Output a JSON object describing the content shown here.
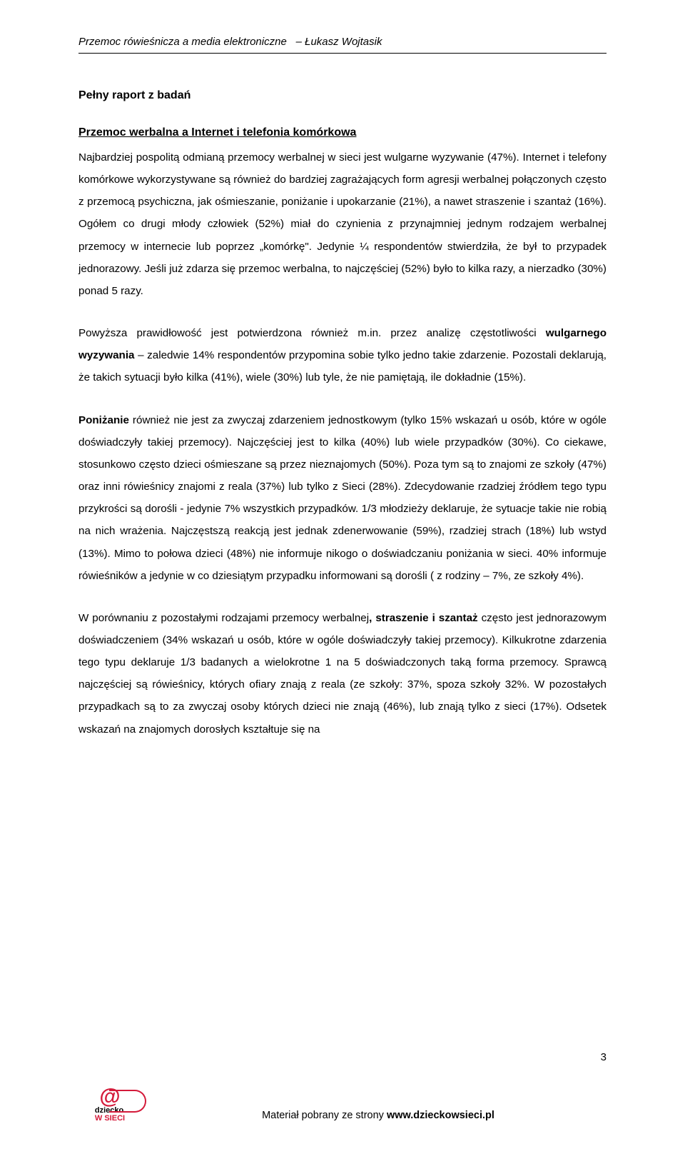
{
  "header": {
    "left": "Przemoc rówieśnicza a media elektroniczne",
    "right": "– Łukasz Wojtasik"
  },
  "title": "Pełny raport z badań",
  "subtitle": "Przemoc werbalna a Internet i telefonia komórkowa",
  "paragraphs": {
    "p1": "Najbardziej pospolitą odmianą przemocy werbalnej w sieci jest wulgarne wyzywanie (47%). Internet i telefony komórkowe wykorzystywane są również do bardziej zagrażających form agresji werbalnej połączonych często z przemocą psychiczna, jak ośmieszanie, poniżanie i upokarzanie (21%), a nawet straszenie i szantaż (16%). Ogółem co drugi młody człowiek (52%) miał do czynienia z przynajmniej jednym rodzajem werbalnej przemocy w internecie lub poprzez „komórkę\". Jedynie ¼ respondentów stwierdziła, że był to przypadek jednorazowy. Jeśli już zdarza się przemoc werbalna, to najczęściej (52%) było to kilka razy, a nierzadko (30%) ponad 5 razy.",
    "p2_a": "Powyższa prawidłowość jest potwierdzona również m.in. przez analizę częstotliwości ",
    "p2_b": "wulgarnego wyzywania",
    "p2_c": " – zaledwie 14% respondentów przypomina sobie tylko jedno takie zdarzenie. Pozostali deklarują, że takich sytuacji było kilka (41%), wiele (30%) lub tyle, że nie pamiętają, ile dokładnie (15%).",
    "p3_a": "Poniżanie",
    "p3_b": " również nie jest za zwyczaj zdarzeniem jednostkowym (tylko 15% wskazań u osób, które w ogóle doświadczyły takiej przemocy). Najczęściej jest to kilka (40%) lub wiele przypadków (30%). Co ciekawe, stosunkowo często dzieci ośmieszane są przez nieznajomych (50%). Poza tym są to znajomi ze szkoły (47%) oraz inni rówieśnicy znajomi z reala (37%) lub tylko z Sieci (28%). Zdecydowanie rzadziej źródłem tego typu przykrości są dorośli - jedynie 7% wszystkich przypadków. 1/3 młodzieży deklaruje, że sytuacje takie nie robią na nich wrażenia. Najczęstszą reakcją jest jednak zdenerwowanie (59%), rzadziej strach (18%) lub wstyd (13%). Mimo to połowa dzieci (48%) nie informuje nikogo o doświadczaniu poniżania w sieci. 40% informuje rówieśników a jedynie w co dziesiątym przypadku informowani są dorośli ( z rodziny – 7%, ze szkoły 4%).",
    "p4_a": "W porównaniu z pozostałymi rodzajami przemocy werbalnej",
    "p4_b": ", straszenie i szantaż",
    "p4_c": " często jest jednorazowym doświadczeniem (34% wskazań u osób, które w ogóle doświadczyły takiej przemocy). Kilkukrotne zdarzenia tego typu deklaruje 1/3 badanych a wielokrotne 1 na 5 doświadczonych taką forma przemocy. Sprawcą najczęściej są rówieśnicy, których ofiary znają z reala (ze szkoły: 37%, spoza szkoły 32%. W pozostałych przypadkach są to za zwyczaj osoby których dzieci nie znają (46%), lub znają tylko z sieci (17%). Odsetek wskazań na znajomych dorosłych kształtuje się na"
  },
  "footer": {
    "page": "3",
    "logo_top": "dziecko",
    "logo_bottom": "W SIECI",
    "center_a": "Materiał pobrany ze strony ",
    "center_b": "www.dzieckowsieci.pl"
  }
}
